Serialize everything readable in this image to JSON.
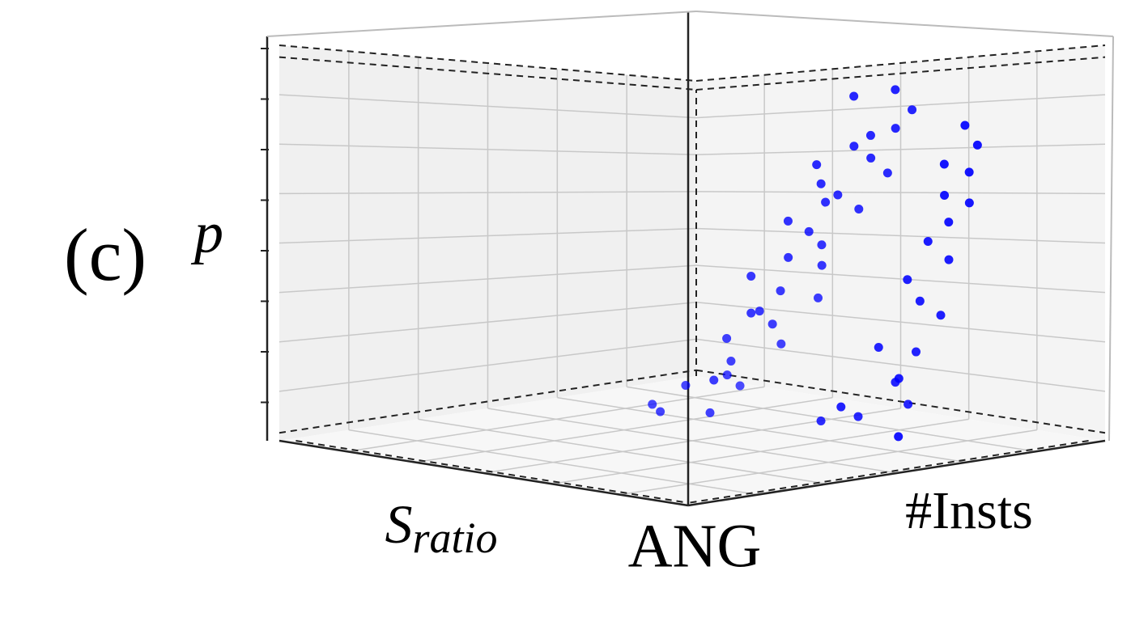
{
  "chart_data": {
    "type": "scatter3d",
    "panel_label": "(c)",
    "xlabel": {
      "text": "S",
      "subscript": "ratio"
    },
    "ylabel": "#Insts",
    "zlabel": "p",
    "annotations": [
      "ANG"
    ],
    "xlim": [
      0,
      1
    ],
    "ylim": [
      0,
      1
    ],
    "zlim": [
      0,
      1
    ],
    "grid": true,
    "series": [
      {
        "color": "#0000ff",
        "x": [
          0.15,
          0.22,
          0.3,
          0.12,
          0.25,
          0.18,
          0.28,
          0.1,
          0.2,
          0.26,
          0.14,
          0.3,
          0.16,
          0.22,
          0.12,
          0.27,
          0.19,
          0.1,
          0.24,
          0.15,
          0.21,
          0.13,
          0.28,
          0.17,
          0.11,
          0.23,
          0.16,
          0.2,
          0.25,
          0.3,
          0.35,
          0.32,
          0.4,
          0.38,
          0.1,
          0.15,
          0.12,
          0.2,
          0.1,
          0.14,
          0.18,
          0.11,
          0.16,
          0.13,
          0.1,
          0.15,
          0.12,
          0.17,
          0.11,
          0.14,
          0.2,
          0.25,
          0.3,
          0.22,
          0.28
        ],
        "y": [
          0.26,
          0.3,
          0.28,
          0.33,
          0.34,
          0.37,
          0.36,
          0.4,
          0.41,
          0.42,
          0.45,
          0.44,
          0.47,
          0.5,
          0.52,
          0.5,
          0.54,
          0.57,
          0.55,
          0.58,
          0.6,
          0.62,
          0.58,
          0.6,
          0.64,
          0.62,
          0.65,
          0.52,
          0.48,
          0.44,
          0.4,
          0.36,
          0.32,
          0.28,
          0.62,
          0.64,
          0.66,
          0.65,
          0.7,
          0.69,
          0.7,
          0.73,
          0.73,
          0.75,
          0.77,
          0.76,
          0.79,
          0.78,
          0.8,
          0.8,
          0.6,
          0.56,
          0.66,
          0.72,
          0.78
        ],
        "z": [
          0.05,
          0.1,
          0.08,
          0.18,
          0.15,
          0.25,
          0.22,
          0.32,
          0.35,
          0.3,
          0.42,
          0.4,
          0.48,
          0.52,
          0.58,
          0.55,
          0.62,
          0.68,
          0.65,
          0.72,
          0.75,
          0.8,
          0.7,
          0.78,
          0.85,
          0.88,
          0.9,
          0.6,
          0.45,
          0.3,
          0.12,
          0.02,
          0.03,
          0.04,
          0.05,
          0.12,
          0.2,
          0.22,
          0.3,
          0.34,
          0.4,
          0.45,
          0.5,
          0.55,
          0.6,
          0.62,
          0.68,
          0.7,
          0.75,
          0.8,
          0.03,
          0.02,
          0.08,
          0.15,
          0.02
        ]
      }
    ]
  }
}
